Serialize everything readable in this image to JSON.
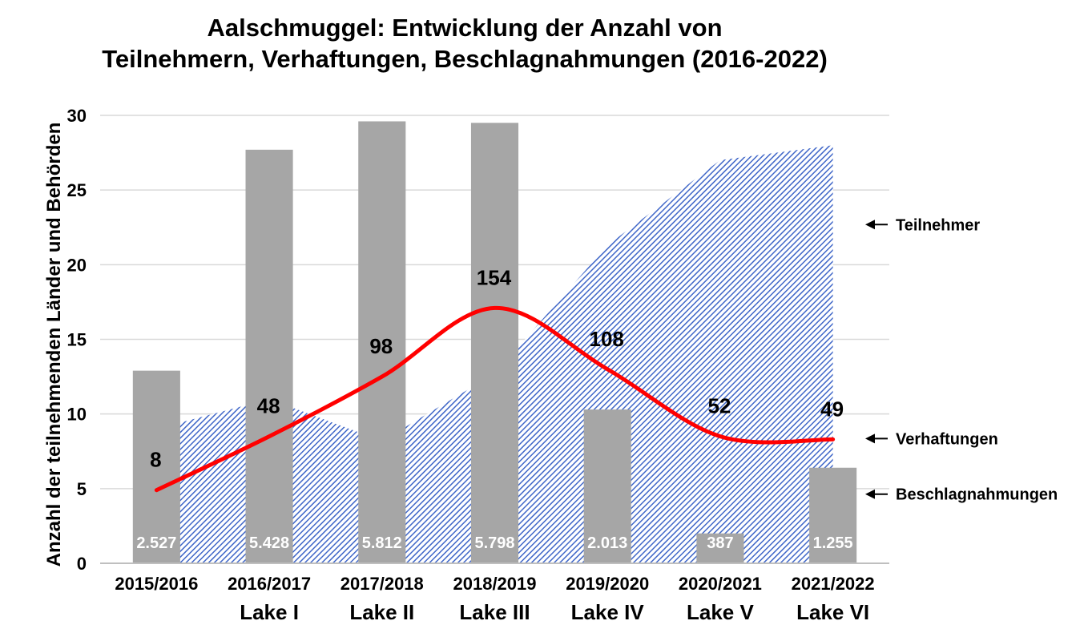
{
  "chart_data": {
    "type": "bar",
    "title_line1": "Aalschmuggel: Entwicklung der Anzahl von",
    "title_line2": "Teilnehmern, Verhaftungen, Beschlagnahmungen (2016-2022)",
    "ylabel": "Anzahl der teilnehmenden Länder und Behörden",
    "ylim": [
      0,
      30
    ],
    "yticks": [
      "0",
      "5",
      "10",
      "15",
      "20",
      "25",
      "30"
    ],
    "categories": [
      {
        "line1": "2015/2016",
        "line2": ""
      },
      {
        "line1": "2016/2017",
        "line2": "Lake I"
      },
      {
        "line1": "2017/2018",
        "line2": "Lake II"
      },
      {
        "line1": "2018/2019",
        "line2": "Lake III"
      },
      {
        "line1": "2019/2020",
        "line2": "Lake IV"
      },
      {
        "line1": "2020/2021",
        "line2": "Lake V"
      },
      {
        "line1": "2021/2022",
        "line2": "Lake VI"
      }
    ],
    "series": [
      {
        "name": "Beschlagnahmungen",
        "kind": "bar",
        "color": "#a6a6a6",
        "values": [
          12.9,
          27.7,
          29.6,
          29.5,
          10.3,
          2.0,
          6.4
        ],
        "labels": [
          "2.527",
          "5.428",
          "5.812",
          "5.798",
          "2.013",
          "387",
          "1.255"
        ]
      },
      {
        "name": "Teilnehmer",
        "kind": "area",
        "color": "#3f66c8",
        "values": [
          9.0,
          11.0,
          8.2,
          12.7,
          21.3,
          27.0,
          28.0
        ]
      },
      {
        "name": "Verhaftungen",
        "kind": "line",
        "color": "#ff0000",
        "values": [
          4.9,
          8.5,
          12.5,
          17.1,
          13.0,
          8.5,
          8.3
        ],
        "labels": [
          "8",
          "48",
          "98",
          "154",
          "108",
          "52",
          "49"
        ]
      }
    ],
    "legend": [
      {
        "label": "Teilnehmer",
        "arrow": "←"
      },
      {
        "label": "Verhaftungen",
        "arrow": "←"
      },
      {
        "label": "Beschlagnahmungen",
        "arrow": "←"
      }
    ],
    "grid": true,
    "legend_position": "right"
  }
}
